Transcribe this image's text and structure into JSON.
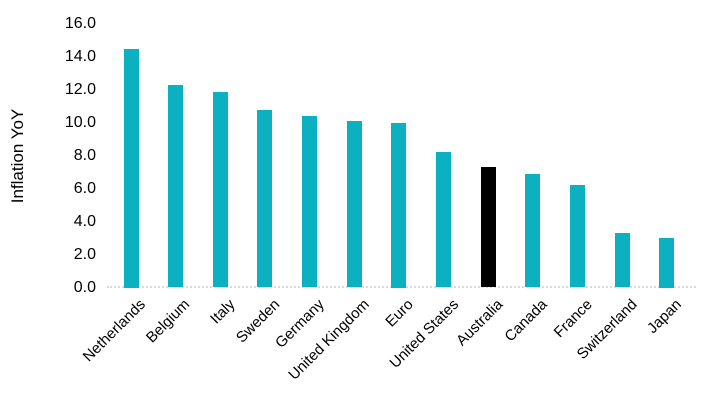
{
  "chart_data": {
    "type": "bar",
    "title": "",
    "xlabel": "",
    "ylabel": "Inflation YoY",
    "categories": [
      "Netherlands",
      "Belgium",
      "Italy",
      "Sweden",
      "Germany",
      "United Kingdom",
      "Euro",
      "United States",
      "Australia",
      "Canada",
      "France",
      "Switzerland",
      "Japan"
    ],
    "values": [
      14.5,
      12.3,
      11.9,
      10.8,
      10.4,
      10.1,
      10.0,
      8.2,
      7.3,
      6.9,
      6.2,
      3.3,
      3.0
    ],
    "ylim": [
      0,
      16
    ],
    "ytick_step": 2,
    "ytick_labels": [
      "0.0",
      "2.0",
      "4.0",
      "6.0",
      "8.0",
      "10.0",
      "12.0",
      "14.0",
      "16.0"
    ],
    "bar_color": "#0bb1c1",
    "highlight_category": "Australia",
    "highlight_color": "#000000",
    "baseline_color": "#d9d9d9",
    "grid": false,
    "legend": "none",
    "x_label_rotation_deg": -45
  }
}
